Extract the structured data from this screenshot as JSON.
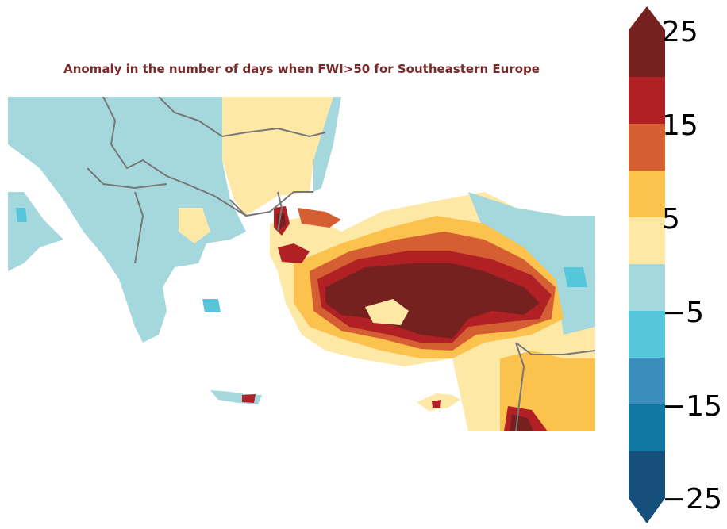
{
  "title": "Anomaly in the number of days when FWI>50 for Southeastern Europe",
  "colorbar": {
    "levels": [
      -25,
      -20,
      -15,
      -10,
      -5,
      0,
      5,
      10,
      15,
      20,
      25
    ],
    "colors": [
      "#14507a",
      "#0f78a3",
      "#3b8ebc",
      "#56c6da",
      "#a4d8dc",
      "#fde8a6",
      "#fcc24e",
      "#d55f33",
      "#b02025",
      "#76201f"
    ],
    "extend": "both",
    "ticks": [
      {
        "value": 25,
        "label": "25"
      },
      {
        "value": 15,
        "label": "15"
      },
      {
        "value": 5,
        "label": "5"
      },
      {
        "value": -5,
        "label": "−5"
      },
      {
        "value": -15,
        "label": "−15"
      },
      {
        "value": -25,
        "label": "−25"
      }
    ]
  },
  "palette": {
    "land_neutral": "#a4d8dc",
    "low_positive": "#fde8a6",
    "medium_positive": "#fcc24e",
    "high_positive": "#d55f33",
    "very_high": "#b02025",
    "extreme": "#76201f",
    "negative": "#56c6da",
    "border": "#777777",
    "sea": "#ffffff"
  }
}
